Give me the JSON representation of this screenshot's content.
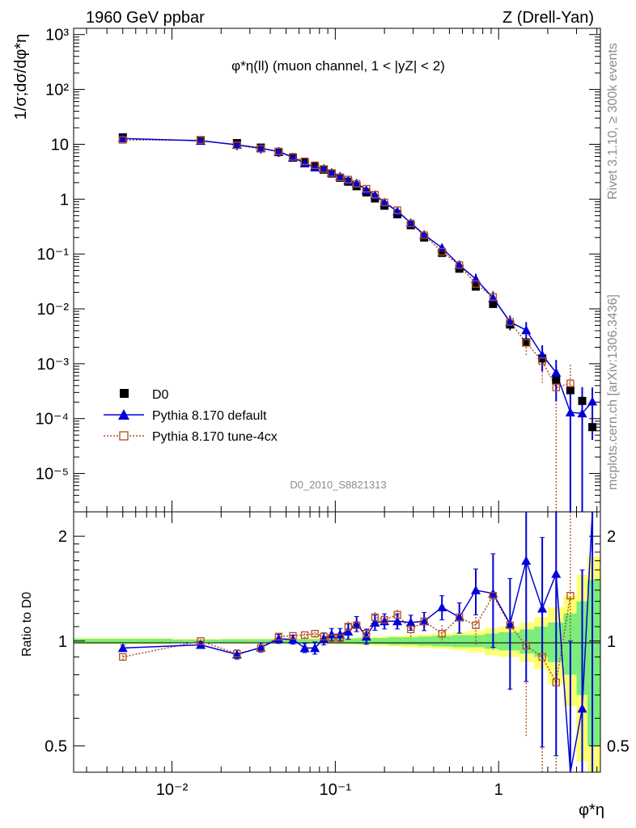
{
  "header": {
    "left": "1960 GeV ppbar",
    "right": "Z (Drell-Yan)"
  },
  "side": {
    "rivet": "Rivet 3.1.10, ≥ 300k events",
    "mcplots": "mcplots.cern.ch [arXiv:1306.3436]"
  },
  "watermark": "D0_2010_S8821313",
  "colors": {
    "data": "#000000",
    "default": "#0000d9",
    "tune": "#b34d1a",
    "band_outer": "#ffff70",
    "band_inner": "#7aed7a"
  },
  "chart_data": [
    {
      "type": "scatter",
      "title": "φ*η(ll) (muon channel, 1 < |yZ| < 2)",
      "ylabel": "1/σ;dσ/dφ*η",
      "yscale": "log",
      "xscale": "log",
      "xlim": [
        0.0025,
        4.2
      ],
      "ylim": [
        2e-06,
        1300
      ],
      "legend": {
        "placement": "bottom-left",
        "entries": [
          "D0",
          "Pythia 8.170 default",
          "Pythia 8.170 tune-4cx"
        ]
      },
      "x": [
        0.005,
        0.015,
        0.025,
        0.035,
        0.045,
        0.055,
        0.065,
        0.075,
        0.085,
        0.095,
        0.107,
        0.12,
        0.135,
        0.155,
        0.175,
        0.2,
        0.24,
        0.29,
        0.35,
        0.45,
        0.575,
        0.725,
        0.925,
        1.175,
        1.475,
        1.85,
        2.25,
        2.75,
        3.25,
        3.75
      ],
      "series": [
        {
          "name": "D0",
          "values": [
            13.4,
            11.9,
            10.5,
            8.7,
            7.2,
            5.7,
            4.7,
            3.95,
            3.45,
            2.93,
            2.45,
            2.08,
            1.72,
            1.33,
            1.03,
            0.76,
            0.53,
            0.335,
            0.2,
            0.105,
            0.054,
            0.0255,
            0.0123,
            0.0052,
            0.00245,
            0.00125,
            0.0005,
            0.00033,
            0.00021,
            7e-05
          ]
        },
        {
          "name": "Pythia 8.170 default",
          "values": [
            12.8,
            11.6,
            9.8,
            8.5,
            7.35,
            5.8,
            4.5,
            3.8,
            3.6,
            3.05,
            2.6,
            2.2,
            1.95,
            1.47,
            1.19,
            0.87,
            0.6,
            0.37,
            0.225,
            0.13,
            0.063,
            0.035,
            0.0158,
            0.0058,
            0.0041,
            0.00145,
            0.00069,
            0.00013,
            0.000125,
            0.000205
          ],
          "yerr": [
            0.15,
            0.15,
            0.2,
            0.2,
            0.2,
            0.15,
            0.15,
            0.15,
            0.15,
            0.15,
            0.15,
            0.15,
            0.15,
            0.15,
            0.15,
            0.15,
            0.15,
            0.15,
            0.15,
            0.15,
            0.2,
            0.25,
            0.3,
            0.3,
            0.4,
            0.5,
            0.7,
            2.0,
            2.0,
            0.8
          ]
        },
        {
          "name": "Pythia 8.170 tune-4cx",
          "values": [
            12.0,
            11.9,
            9.6,
            8.3,
            7.4,
            5.9,
            4.9,
            4.15,
            3.55,
            3.0,
            2.5,
            2.28,
            1.9,
            1.55,
            1.21,
            0.87,
            0.63,
            0.36,
            0.22,
            0.11,
            0.063,
            0.0285,
            0.0165,
            0.0058,
            0.0024,
            0.00112,
            0.00037,
            0.00044
          ],
          "yerr": [
            0.1,
            0.1,
            0.1,
            0.1,
            0.1,
            0.1,
            0.1,
            0.1,
            0.1,
            0.1,
            0.1,
            0.1,
            0.1,
            0.1,
            0.1,
            0.1,
            0.1,
            0.1,
            0.1,
            0.1,
            0.15,
            0.2,
            0.3,
            0.3,
            0.4,
            0.6,
            1.5,
            1.2
          ]
        }
      ]
    },
    {
      "type": "line",
      "ylabel": "Ratio to D0",
      "xlabel": "φ*η",
      "xscale": "log",
      "yscale": "log",
      "xlim": [
        0.0025,
        4.2
      ],
      "ylim": [
        0.42,
        2.35
      ],
      "xticks": [
        {
          "value": 0.01,
          "label": "10⁻²"
        },
        {
          "value": 0.1,
          "label": "10⁻¹"
        },
        {
          "value": 1,
          "label": "1"
        }
      ],
      "yticks": [
        0.5,
        1,
        2
      ],
      "band_edges": [
        0.0025,
        0.01,
        0.02,
        0.03,
        0.04,
        0.05,
        0.06,
        0.07,
        0.08,
        0.09,
        0.1,
        0.115,
        0.13,
        0.14,
        0.17,
        0.19,
        0.21,
        0.26,
        0.32,
        0.39,
        0.52,
        0.65,
        0.82,
        1.0,
        1.35,
        1.65,
        2.0,
        2.5,
        3.0,
        3.5,
        4.2
      ],
      "band_inner": [
        0.015,
        0.01,
        0.012,
        0.012,
        0.012,
        0.013,
        0.013,
        0.013,
        0.014,
        0.015,
        0.016,
        0.016,
        0.018,
        0.02,
        0.02,
        0.02,
        0.025,
        0.025,
        0.03,
        0.035,
        0.04,
        0.04,
        0.05,
        0.06,
        0.08,
        0.1,
        0.13,
        0.2,
        0.3,
        0.5
      ],
      "band_outer": [
        0.02,
        0.014,
        0.016,
        0.017,
        0.018,
        0.018,
        0.018,
        0.019,
        0.02,
        0.02,
        0.022,
        0.023,
        0.025,
        0.027,
        0.03,
        0.03,
        0.035,
        0.04,
        0.045,
        0.05,
        0.06,
        0.07,
        0.09,
        0.1,
        0.13,
        0.17,
        0.25,
        0.35,
        0.55,
        0.75
      ],
      "series": [
        {
          "name": "Pythia 8.170 default",
          "values": [
            0.955,
            0.975,
            0.915,
            0.958,
            1.015,
            1.01,
            0.955,
            0.955,
            1.015,
            1.045,
            1.045,
            1.065,
            1.12,
            1.03,
            1.13,
            1.14,
            1.14,
            1.13,
            1.14,
            1.25,
            1.17,
            1.4,
            1.37,
            1.12,
            1.7,
            1.24,
            1.56,
            0.4,
            0.64,
            2.6
          ],
          "yerr": [
            0.02,
            0.02,
            0.03,
            0.03,
            0.03,
            0.03,
            0.03,
            0.04,
            0.04,
            0.04,
            0.04,
            0.05,
            0.05,
            0.05,
            0.05,
            0.05,
            0.05,
            0.05,
            0.06,
            0.08,
            0.1,
            0.15,
            0.3,
            0.35,
            0.55,
            0.6,
            0.7,
            1.5,
            1.5,
            1.0
          ]
        },
        {
          "name": "Pythia 8.170 tune-4cx",
          "values": [
            0.9,
            1.0,
            0.92,
            0.955,
            1.03,
            1.035,
            1.04,
            1.05,
            1.03,
            1.02,
            1.02,
            1.1,
            1.11,
            1.05,
            1.17,
            1.15,
            1.19,
            1.08,
            1.14,
            1.05,
            1.17,
            1.11,
            1.35,
            1.11,
            0.97,
            0.9,
            0.76,
            1.35
          ],
          "yerr": [
            0.02,
            0.02,
            0.02,
            0.02,
            0.02,
            0.02,
            0.02,
            0.02,
            0.03,
            0.03,
            0.03,
            0.04,
            0.04,
            0.04,
            0.04,
            0.04,
            0.04,
            0.05,
            0.05,
            0.06,
            0.08,
            0.12,
            0.3,
            0.35,
            0.45,
            0.55,
            0.7,
            1.2
          ]
        }
      ]
    }
  ]
}
